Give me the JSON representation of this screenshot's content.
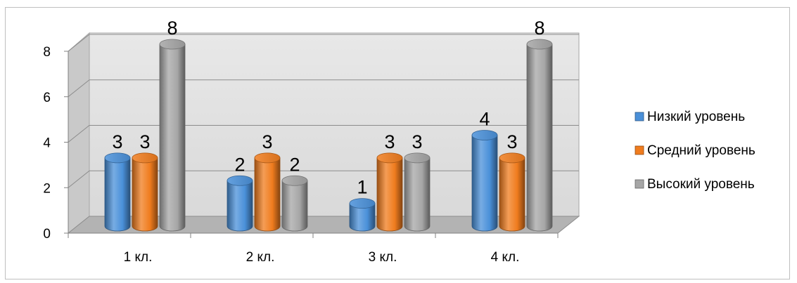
{
  "chart_data": {
    "type": "bar",
    "title": "",
    "xlabel": "",
    "ylabel": "",
    "categories": [
      "1 кл.",
      "2 кл.",
      "3 кл.",
      "4 кл."
    ],
    "series": [
      {
        "name": "Низкий уровень",
        "values": [
          3,
          2,
          1,
          4
        ],
        "color": "#4a90d9"
      },
      {
        "name": "Средний уровень",
        "values": [
          3,
          3,
          3,
          3
        ],
        "color": "#f07c1e"
      },
      {
        "name": "Высокий уровень",
        "values": [
          8,
          2,
          3,
          8
        ],
        "color": "#a6a6a6"
      }
    ],
    "ylim": [
      0,
      8
    ],
    "yticks": [
      0,
      2,
      4,
      6,
      8
    ],
    "grid": true,
    "legend_position": "right",
    "style": "3d-cylinder"
  }
}
